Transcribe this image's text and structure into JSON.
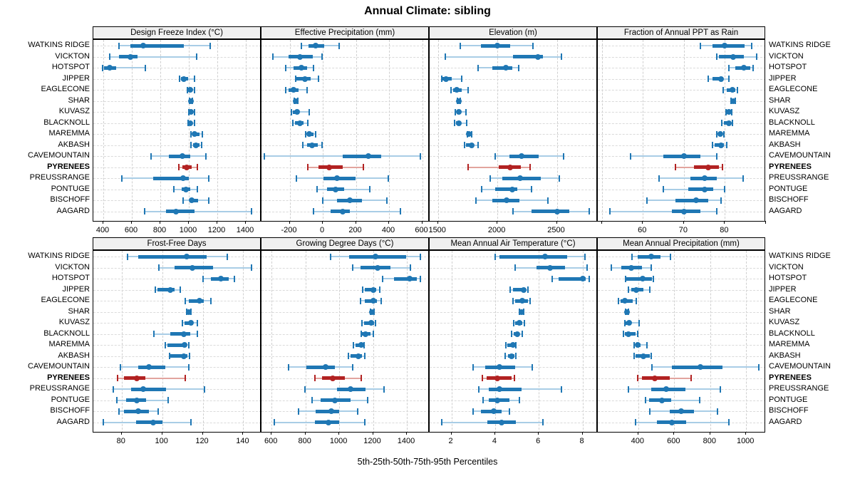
{
  "title": "Annual Climate: sibling",
  "caption": "5th-25th-50th-75th-95th Percentiles",
  "highlight_site": "PYRENEES",
  "sites": [
    "WATKINS RIDGE",
    "VICKTON",
    "HOTSPOT",
    "JIPPER",
    "EAGLECONE",
    "SHAR",
    "KUVASZ",
    "BLACKNOLL",
    "MAREMMA",
    "AKBASH",
    "CAVEMOUNTAIN",
    "PYRENEES",
    "PREUSSRANGE",
    "PONTUGE",
    "BISCHOFF",
    "AAGARD"
  ],
  "colors": {
    "series": "#1f77b4",
    "series_light": "#a9cde6",
    "highlight": "#b22222",
    "highlight_light": "#e2a49e",
    "header_bg": "#f0f0f0",
    "grid": "#cfcfcf",
    "border": "#000000"
  },
  "chart_data": {
    "type": "percentile-dotplot",
    "percentiles": [
      5,
      25,
      50,
      75,
      95
    ],
    "layout": "2 rows x 4 columns of panels; 16 site rows per panel; site labels on both left and right; x-axis ticks under each panel row; dashed grid",
    "panels": [
      {
        "label": "Design Freeze Index (°C)",
        "grid_row": 0,
        "grid_col": 0,
        "domain": [
          330,
          1510
        ],
        "ticks": [
          400,
          600,
          800,
          1000,
          1200,
          1400
        ],
        "extra_ticks": [],
        "values": [
          [
            510,
            590,
            680,
            965,
            1150
          ],
          [
            445,
            510,
            590,
            640,
            1055
          ],
          [
            395,
            405,
            445,
            490,
            695
          ],
          [
            935,
            945,
            965,
            995,
            1040
          ],
          [
            990,
            1000,
            1010,
            1022,
            1042
          ],
          [
            1003,
            1008,
            1013,
            1018,
            1026
          ],
          [
            1000,
            1006,
            1013,
            1023,
            1042
          ],
          [
            995,
            1002,
            1010,
            1020,
            1040
          ],
          [
            1015,
            1030,
            1040,
            1075,
            1095
          ],
          [
            1015,
            1030,
            1050,
            1075,
            1088
          ],
          [
            735,
            860,
            955,
            1010,
            1120
          ],
          [
            930,
            955,
            985,
            1020,
            1060
          ],
          [
            530,
            750,
            960,
            1000,
            1140
          ],
          [
            895,
            950,
            980,
            1012,
            1058
          ],
          [
            958,
            1003,
            1022,
            1063,
            1138
          ],
          [
            690,
            840,
            910,
            1040,
            1440
          ]
        ]
      },
      {
        "label": "Effective Precipitation (mm)",
        "grid_row": 0,
        "grid_col": 1,
        "domain": [
          -370,
          645
        ],
        "ticks": [
          -200,
          0,
          200,
          400,
          600
        ],
        "extra_ticks": [],
        "values": [
          [
            -130,
            -85,
            -45,
            10,
            100
          ],
          [
            -300,
            -205,
            -140,
            -60,
            -5
          ],
          [
            -225,
            -175,
            -130,
            -95,
            -55
          ],
          [
            -165,
            -158,
            -110,
            -75,
            -25
          ],
          [
            -225,
            -205,
            -175,
            -145,
            -95
          ],
          [
            -172,
            -167,
            -162,
            -157,
            -150
          ],
          [
            -190,
            -180,
            -155,
            -140,
            -80
          ],
          [
            -180,
            -170,
            -140,
            -115,
            -90
          ],
          [
            -105,
            -95,
            -80,
            -55,
            -45
          ],
          [
            -120,
            -95,
            -65,
            -30,
            -5
          ],
          [
            -355,
            120,
            275,
            355,
            590
          ],
          [
            -90,
            -25,
            40,
            120,
            245
          ],
          [
            -160,
            5,
            85,
            200,
            395
          ],
          [
            -35,
            25,
            75,
            130,
            285
          ],
          [
            0,
            85,
            165,
            235,
            385
          ],
          [
            -55,
            45,
            120,
            165,
            470
          ]
        ]
      },
      {
        "label": "Elevation (m)",
        "grid_row": 0,
        "grid_col": 2,
        "domain": [
          1430,
          2845
        ],
        "ticks": [
          1500,
          2000,
          2500
        ],
        "extra_ticks": [],
        "values": [
          [
            1690,
            1860,
            2000,
            2110,
            2300
          ],
          [
            1560,
            2130,
            2340,
            2385,
            2540
          ],
          [
            1835,
            1960,
            2070,
            2125,
            2180
          ],
          [
            1530,
            1535,
            1570,
            1615,
            1700
          ],
          [
            1610,
            1625,
            1660,
            1700,
            1755
          ],
          [
            1665,
            1671,
            1677,
            1683,
            1690
          ],
          [
            1645,
            1655,
            1675,
            1690,
            1735
          ],
          [
            1640,
            1650,
            1675,
            1692,
            1740
          ],
          [
            1745,
            1752,
            1760,
            1772,
            1785
          ],
          [
            1725,
            1737,
            1785,
            1805,
            1835
          ],
          [
            1980,
            2100,
            2205,
            2350,
            2555
          ],
          [
            1755,
            2010,
            2110,
            2200,
            2275
          ],
          [
            1940,
            2040,
            2190,
            2365,
            2520
          ],
          [
            1870,
            1980,
            2125,
            2168,
            2290
          ],
          [
            1820,
            1960,
            2080,
            2185,
            2425
          ],
          [
            2130,
            2285,
            2505,
            2605,
            2775
          ]
        ]
      },
      {
        "label": "Fraction of Annual PPT as Rain",
        "grid_row": 0,
        "grid_col": 3,
        "domain": [
          49,
          90
        ],
        "ticks": [
          60,
          70,
          80
        ],
        "extra_ticks": [
          50,
          90
        ],
        "values": [
          [
            74,
            77,
            80,
            84.8,
            86.5
          ],
          [
            78,
            78.5,
            82,
            84.7,
            87.7
          ],
          [
            81,
            82.5,
            84.6,
            86.2,
            86.8
          ],
          [
            76,
            77,
            79,
            79.6,
            81
          ],
          [
            79.5,
            80.5,
            81.8,
            82.5,
            83
          ],
          [
            81.4,
            81.7,
            82,
            82.3,
            82.6
          ],
          [
            80.2,
            80.5,
            80.9,
            81.2,
            81.6
          ],
          [
            79.2,
            79.7,
            80.9,
            81.4,
            81.9
          ],
          [
            78,
            78.4,
            78.9,
            79.3,
            79.7
          ],
          [
            77,
            77.5,
            79,
            79.8,
            80.4
          ],
          [
            57,
            65,
            70,
            74,
            78
          ],
          [
            68,
            72.5,
            76,
            78.5,
            79.4
          ],
          [
            64,
            71.5,
            75,
            78,
            84.4
          ],
          [
            65,
            71,
            75,
            77.2,
            80
          ],
          [
            61,
            68,
            73,
            76,
            79
          ],
          [
            52,
            67,
            70,
            74,
            78
          ]
        ]
      },
      {
        "label": "Frost-Free Days",
        "grid_row": 1,
        "grid_col": 0,
        "domain": [
          66,
          149
        ],
        "ticks": [
          80,
          100,
          120,
          140
        ],
        "extra_ticks": [],
        "values": [
          [
            83,
            88,
            112,
            122,
            132
          ],
          [
            98.5,
            106,
            115,
            125,
            144
          ],
          [
            120,
            124,
            129,
            133,
            135.5
          ],
          [
            96.5,
            97.5,
            104,
            106,
            109
          ],
          [
            111.5,
            113,
            118.5,
            120.5,
            124
          ],
          [
            112,
            112.5,
            113,
            113.6,
            114.2
          ],
          [
            110,
            111,
            114,
            115.3,
            117.5
          ],
          [
            96,
            104,
            110.5,
            114,
            117.5
          ],
          [
            101.5,
            102.5,
            111,
            112,
            113
          ],
          [
            103.5,
            104,
            110.5,
            112.5,
            113.5
          ],
          [
            79.5,
            88,
            93.5,
            101.5,
            113
          ],
          [
            78,
            81,
            87.5,
            91.5,
            111.5
          ],
          [
            76,
            84.5,
            90.5,
            102,
            121
          ],
          [
            77.5,
            82,
            87.5,
            92,
            103
          ],
          [
            78.5,
            81,
            88,
            93.5,
            98
          ],
          [
            71,
            87,
            95.5,
            100,
            114
          ]
        ]
      },
      {
        "label": "Growing Degree Days (°C)",
        "grid_row": 1,
        "grid_col": 1,
        "domain": [
          540,
          1535
        ],
        "ticks": [
          600,
          800,
          1000,
          1200,
          1400
        ],
        "extra_ticks": [],
        "values": [
          [
            950,
            1060,
            1215,
            1395,
            1480
          ],
          [
            1080,
            1125,
            1225,
            1305,
            1420
          ],
          [
            1255,
            1325,
            1415,
            1460,
            1480
          ],
          [
            1140,
            1150,
            1200,
            1220,
            1240
          ],
          [
            1125,
            1150,
            1200,
            1225,
            1250
          ],
          [
            1185,
            1190,
            1195,
            1200,
            1205
          ],
          [
            1135,
            1145,
            1190,
            1205,
            1215
          ],
          [
            1128,
            1133,
            1157,
            1185,
            1203
          ],
          [
            1085,
            1095,
            1130,
            1140,
            1147
          ],
          [
            1055,
            1065,
            1112,
            1135,
            1150
          ],
          [
            700,
            805,
            920,
            975,
            1080
          ],
          [
            855,
            900,
            960,
            1035,
            1130
          ],
          [
            795,
            985,
            1065,
            1155,
            1265
          ],
          [
            840,
            890,
            975,
            1065,
            1170
          ],
          [
            760,
            860,
            955,
            1000,
            1110
          ],
          [
            615,
            855,
            935,
            1000,
            1150
          ]
        ]
      },
      {
        "label": "Mean Annual Air Temperature (°C)",
        "grid_row": 1,
        "grid_col": 2,
        "domain": [
          1.0,
          8.7
        ],
        "ticks": [
          2,
          4,
          6,
          8
        ],
        "extra_ticks": [],
        "values": [
          [
            4.0,
            4.2,
            6.3,
            7.3,
            8.1
          ],
          [
            4.9,
            5.9,
            6.5,
            7.2,
            8.2
          ],
          [
            6.6,
            6.9,
            8.0,
            8.15,
            8.3
          ],
          [
            4.7,
            4.8,
            5.3,
            5.4,
            5.5
          ],
          [
            4.8,
            4.9,
            5.25,
            5.5,
            5.6
          ],
          [
            5.1,
            5.15,
            5.2,
            5.25,
            5.3
          ],
          [
            4.85,
            4.9,
            5.1,
            5.25,
            5.35
          ],
          [
            4.75,
            4.85,
            5.0,
            5.1,
            5.25
          ],
          [
            4.5,
            4.55,
            4.8,
            4.9,
            4.95
          ],
          [
            4.45,
            4.6,
            4.75,
            4.9,
            4.95
          ],
          [
            3.0,
            3.55,
            4.2,
            4.9,
            5.7
          ],
          [
            3.4,
            3.6,
            4.1,
            4.75,
            4.87
          ],
          [
            3.25,
            3.7,
            4.2,
            5.2,
            7.05
          ],
          [
            3.45,
            3.7,
            4.1,
            4.65,
            5.1
          ],
          [
            3.0,
            3.35,
            3.95,
            4.3,
            4.65
          ],
          [
            1.55,
            3.65,
            4.3,
            4.95,
            6.2
          ]
        ]
      },
      {
        "label": "Mean Annual Precipitation (mm)",
        "grid_row": 1,
        "grid_col": 3,
        "domain": [
          175,
          1110
        ],
        "ticks": [
          400,
          600,
          800,
          1000
        ],
        "extra_ticks": [],
        "values": [
          [
            365,
            395,
            470,
            525,
            580
          ],
          [
            250,
            305,
            360,
            420,
            470
          ],
          [
            330,
            335,
            425,
            475,
            482
          ],
          [
            345,
            360,
            390,
            430,
            465
          ],
          [
            290,
            300,
            325,
            370,
            390
          ],
          [
            330,
            333,
            337,
            341,
            345
          ],
          [
            325,
            328,
            350,
            360,
            405
          ],
          [
            318,
            325,
            345,
            385,
            395
          ],
          [
            375,
            385,
            397,
            412,
            450
          ],
          [
            375,
            385,
            430,
            463,
            472
          ],
          [
            475,
            585,
            745,
            870,
            1070
          ],
          [
            395,
            420,
            490,
            575,
            695
          ],
          [
            345,
            470,
            555,
            660,
            855
          ],
          [
            440,
            460,
            530,
            585,
            740
          ],
          [
            465,
            575,
            640,
            710,
            840
          ],
          [
            385,
            505,
            585,
            665,
            905
          ]
        ]
      }
    ]
  }
}
